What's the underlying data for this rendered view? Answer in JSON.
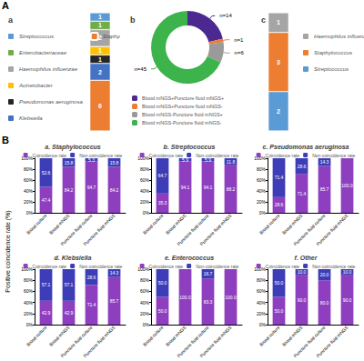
{
  "panel_labels": [
    "A",
    "B"
  ],
  "shared_y_label": "Positive coincidence rate (%)",
  "chart_data": [
    {
      "type": "stacked_column",
      "title": "a",
      "categories": [
        null
      ],
      "stacked": true,
      "data_labels": true,
      "tick_labels": false,
      "legend": "left",
      "ylim": [
        0,
        14
      ],
      "series": [
        {
          "name": "Streptococcus",
          "color": "#5b9bd5",
          "values": [
            1
          ]
        },
        {
          "name": "Enterobacteriaceae",
          "color": "#70ad47",
          "values": [
            1
          ]
        },
        {
          "name": "Haemophilus influenzae",
          "color": "#a5a5a5",
          "values": [
            2
          ]
        },
        {
          "name": "Acinetobacter",
          "color": "#ffc000",
          "values": [
            1
          ]
        },
        {
          "name": "Pseudomonas aeruginosa",
          "color": "#262626",
          "values": [
            1
          ]
        },
        {
          "name": "Klebsiella",
          "color": "#4472c4",
          "values": [
            2
          ]
        },
        {
          "name": "Staphylococcus",
          "color": "#ed7d31",
          "values": [
            6
          ]
        }
      ]
    },
    {
      "type": "pie",
      "title": "b",
      "legend": "bottom",
      "data_labels": true,
      "categories": [
        "Blood mNGS+Puncture fluid mNGS+",
        "Blood mNGS+Puncture fluid mNGS-",
        "Blood mNGS-Puncture fluid mNGS+",
        "Blood mNGS-Puncture fluid mNGS-"
      ],
      "values": [
        14,
        1,
        6,
        45
      ],
      "value_labels": [
        "n=14",
        "n=1",
        "n=6",
        "n=45"
      ],
      "colors": [
        "#4b2991",
        "#ed7d31",
        "#9a9a9a",
        "#3cb44b"
      ]
    },
    {
      "type": "stacked_column",
      "title": "c",
      "categories": [
        null
      ],
      "stacked": true,
      "data_labels": true,
      "tick_labels": false,
      "legend": "right",
      "ylim": [
        0,
        6
      ],
      "series": [
        {
          "name": "Haemophilus influenzae",
          "color": "#a5a5a5",
          "values": [
            1
          ]
        },
        {
          "name": "Staphylococcus",
          "color": "#ed7d31",
          "values": [
            3
          ]
        },
        {
          "name": "Streptococcus",
          "color": "#5b9bd5",
          "values": [
            2
          ]
        }
      ]
    },
    {
      "type": "bar",
      "title": "a. Staphylococcus",
      "stacked": true,
      "data_labels": true,
      "legend": "top",
      "grid": false,
      "categories": [
        "Blood culture",
        "Blood mNGS",
        "Puncture fluid culture",
        "Puncture fluid mNGS"
      ],
      "ylim": [
        0,
        100
      ],
      "yticks": [
        {
          "value": 0,
          "label": "0%"
        },
        {
          "value": 20,
          "label": "20%"
        },
        {
          "value": 40,
          "label": "40%"
        },
        {
          "value": 60,
          "label": "60%"
        },
        {
          "value": 80,
          "label": "80%"
        },
        {
          "value": 100,
          "label": "100%"
        }
      ],
      "series": [
        {
          "name": "Coincidence rate",
          "color": "#8e3fbf",
          "values": [
            47.4,
            84.2,
            94.7,
            84.2
          ],
          "value_labels": [
            "47.4",
            "84.2",
            "94.7",
            "84.2"
          ]
        },
        {
          "name": "Non-coincidence rate",
          "color": "#3d3db8",
          "values": [
            52.6,
            15.8,
            5.3,
            15.8
          ],
          "value_labels": [
            "52.6",
            "15.8",
            "5.3",
            "15.8"
          ]
        }
      ]
    },
    {
      "type": "bar",
      "title": "b. Streptococcus",
      "stacked": true,
      "data_labels": true,
      "legend": "top",
      "grid": false,
      "categories": [
        "Blood culture",
        "Blood mNGS",
        "Puncture fluid culture",
        "Puncture fluid mNGS"
      ],
      "ylim": [
        0,
        100
      ],
      "yticks": [
        {
          "value": 0,
          "label": "0%"
        },
        {
          "value": 20,
          "label": "20%"
        },
        {
          "value": 40,
          "label": "40%"
        },
        {
          "value": 60,
          "label": "60%"
        },
        {
          "value": 80,
          "label": "80%"
        },
        {
          "value": 100,
          "label": "100%"
        }
      ],
      "series": [
        {
          "name": "Coincidence rate",
          "color": "#8e3fbf",
          "values": [
            35.3,
            94.1,
            94.1,
            88.2
          ],
          "value_labels": [
            "35.3",
            "94.1",
            "94.1",
            "88.2"
          ]
        },
        {
          "name": "Non-coincidence rate",
          "color": "#3d3db8",
          "values": [
            64.7,
            5.9,
            5.9,
            11.8
          ],
          "value_labels": [
            "64.7",
            "5.9",
            "5.9",
            "11.8"
          ]
        }
      ]
    },
    {
      "type": "bar",
      "title": "c. Pseudomonas aeruginosa",
      "stacked": true,
      "data_labels": true,
      "legend": "top",
      "grid": false,
      "categories": [
        "Blood culture",
        "Blood mNGS",
        "Puncture fluid culture",
        "Puncture fluid mNGS"
      ],
      "ylim": [
        0,
        100
      ],
      "yticks": [
        {
          "value": 0,
          "label": "0%"
        },
        {
          "value": 20,
          "label": "20%"
        },
        {
          "value": 40,
          "label": "40%"
        },
        {
          "value": 60,
          "label": "60%"
        },
        {
          "value": 80,
          "label": "80%"
        },
        {
          "value": 100,
          "label": "100%"
        }
      ],
      "series": [
        {
          "name": "Coincidence rate",
          "color": "#8e3fbf",
          "values": [
            28.6,
            71.4,
            85.7,
            100
          ],
          "value_labels": [
            "28.6",
            "71.4",
            "85.7",
            "100.0"
          ]
        },
        {
          "name": "Non-coincidence rate",
          "color": "#3d3db8",
          "values": [
            71.4,
            28.6,
            14.3,
            null
          ],
          "value_labels": [
            "71.4",
            "28.6",
            "14.3",
            null
          ]
        }
      ]
    },
    {
      "type": "bar",
      "title": "d. Klebsiella",
      "stacked": true,
      "data_labels": true,
      "legend": "top",
      "grid": false,
      "categories": [
        "Blood culture",
        "Blood mNGS",
        "Puncture fluid culture",
        "Puncture fluid mNGS"
      ],
      "ylim": [
        0,
        100
      ],
      "yticks": [
        {
          "value": 0,
          "label": "0%"
        },
        {
          "value": 20,
          "label": "20%"
        },
        {
          "value": 40,
          "label": "40%"
        },
        {
          "value": 60,
          "label": "60%"
        },
        {
          "value": 80,
          "label": "80%"
        },
        {
          "value": 100,
          "label": "100%"
        }
      ],
      "series": [
        {
          "name": "Coincidence rate",
          "color": "#8e3fbf",
          "values": [
            42.9,
            42.9,
            71.4,
            85.7
          ],
          "value_labels": [
            "42.9",
            "42.9",
            "71.4",
            "85.7"
          ]
        },
        {
          "name": "Non-coincidence rate",
          "color": "#3d3db8",
          "values": [
            57.1,
            57.1,
            28.6,
            14.3
          ],
          "value_labels": [
            "57.1",
            "57.1",
            "28.6",
            "14.3"
          ]
        }
      ]
    },
    {
      "type": "bar",
      "title": "e. Enterococcus",
      "stacked": true,
      "data_labels": true,
      "legend": "top",
      "grid": false,
      "categories": [
        "Blood culture",
        "Blood mNGS",
        "Puncture fluid culture",
        "Puncture fluid mNGS"
      ],
      "ylim": [
        0,
        100
      ],
      "yticks": [
        {
          "value": 0,
          "label": "0%"
        },
        {
          "value": 20,
          "label": "20%"
        },
        {
          "value": 40,
          "label": "40%"
        },
        {
          "value": 60,
          "label": "60%"
        },
        {
          "value": 80,
          "label": "80%"
        },
        {
          "value": 100,
          "label": "100%"
        }
      ],
      "series": [
        {
          "name": "Coincidence rate",
          "color": "#8e3fbf",
          "values": [
            50,
            100,
            83.3,
            100
          ],
          "value_labels": [
            "50.0",
            "100.0",
            "83.3",
            "100.0"
          ]
        },
        {
          "name": "Non-coincidence rate",
          "color": "#3d3db8",
          "values": [
            50,
            null,
            16.7,
            null
          ],
          "value_labels": [
            "50.0",
            null,
            "16.7",
            null
          ]
        }
      ]
    },
    {
      "type": "bar",
      "title": "f. Other",
      "stacked": true,
      "data_labels": true,
      "legend": "top",
      "grid": false,
      "categories": [
        "Blood culture",
        "Blood mNGS",
        "Puncture fluid culture",
        "Puncture fluid mNGS"
      ],
      "ylim": [
        0,
        100
      ],
      "yticks": [
        {
          "value": 0,
          "label": "0%"
        },
        {
          "value": 20,
          "label": "20%"
        },
        {
          "value": 40,
          "label": "40%"
        },
        {
          "value": 60,
          "label": "60%"
        },
        {
          "value": 80,
          "label": "80%"
        },
        {
          "value": 100,
          "label": "100%"
        }
      ],
      "series": [
        {
          "name": "Coincidence rate",
          "color": "#8e3fbf",
          "values": [
            50,
            90,
            80,
            90
          ],
          "value_labels": [
            "50.0",
            "90.0",
            "80.0",
            "90.0"
          ]
        },
        {
          "name": "Non-coincidence rate",
          "color": "#3d3db8",
          "values": [
            50,
            10,
            20,
            10
          ],
          "value_labels": [
            "50.0",
            "10.0",
            "20.0",
            "10.0"
          ]
        }
      ]
    }
  ]
}
